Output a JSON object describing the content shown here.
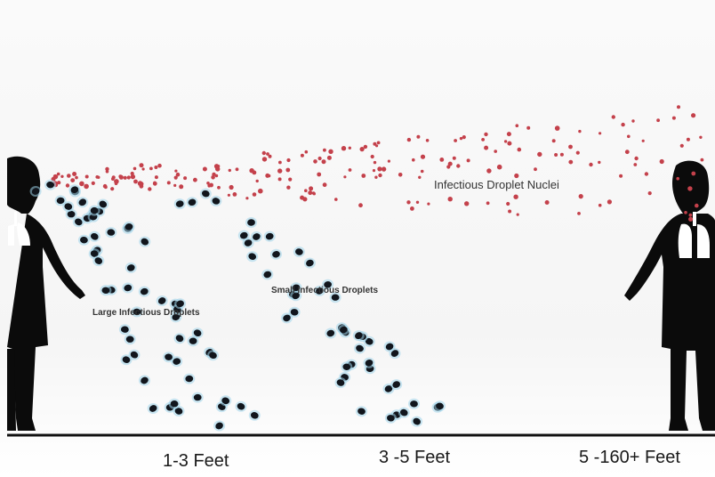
{
  "labels": {
    "droplet_nuclei": "Infectious Droplet Nuclei",
    "large_droplets": "Large Infectious Droplets",
    "small_droplets": "Small Infectious Droplets"
  },
  "distances": [
    "1-3 Feet",
    "3 -5 Feet",
    "5 -160+ Feet"
  ],
  "icons": {
    "left_person": "person-silhouette-icon",
    "right_person": "person-silhouette-icon",
    "lungs": "lungs-icon"
  },
  "colors": {
    "nuclei": "#c4414b",
    "droplets": "#11151c",
    "droplet_halo": "#9fd3ea",
    "silhouette": "#0b0b0b",
    "ground": "#111111"
  }
}
